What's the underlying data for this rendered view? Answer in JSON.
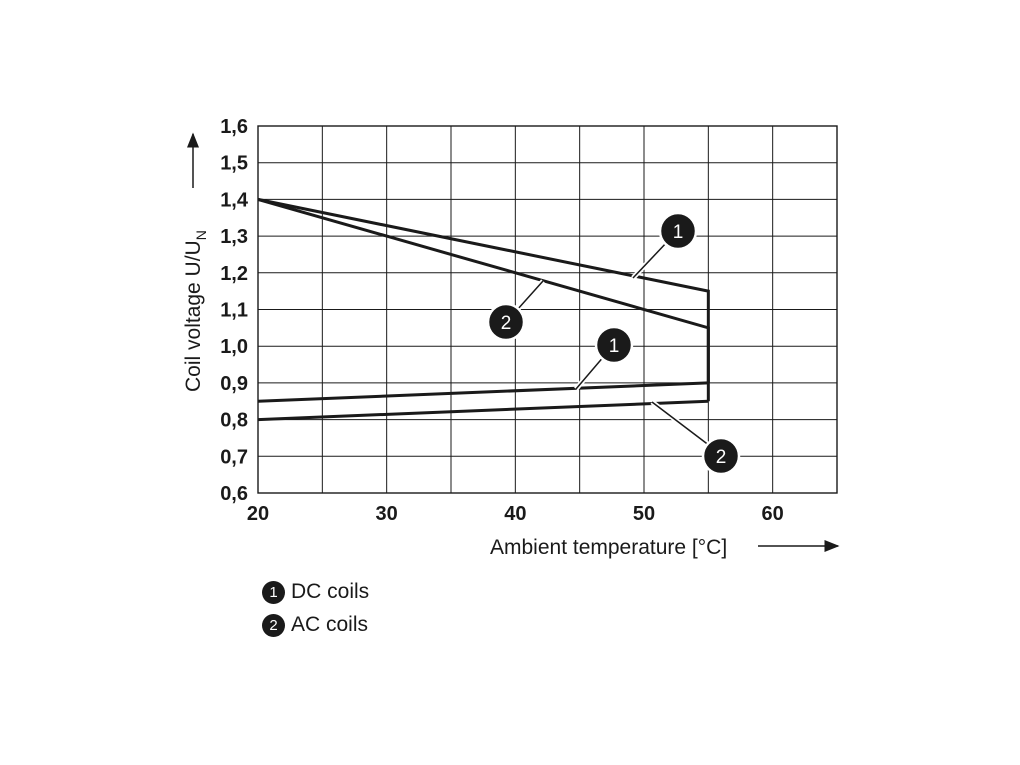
{
  "chart_data": {
    "type": "line",
    "xlabel": "Ambient temperature [°C]",
    "ylabel": "Coil voltage U/U",
    "ylabel_subscript": "N",
    "xlim": [
      20,
      65
    ],
    "ylim": [
      0.6,
      1.6
    ],
    "x_ticks": [
      20,
      30,
      40,
      50,
      60
    ],
    "x_tick_labels": [
      "20",
      "30",
      "40",
      "50",
      "60"
    ],
    "y_ticks": [
      0.6,
      0.7,
      0.8,
      0.9,
      1.0,
      1.1,
      1.2,
      1.3,
      1.4,
      1.5,
      1.6
    ],
    "y_tick_labels": [
      "0,6",
      "0,7",
      "0,8",
      "0,9",
      "1,0",
      "1,1",
      "1,2",
      "1,3",
      "1,4",
      "1,5",
      "1,6"
    ],
    "grid": true,
    "series": [
      {
        "name": "DC coils",
        "part": "upper",
        "x": [
          20,
          55,
          55
        ],
        "y": [
          1.4,
          1.15,
          0.9
        ]
      },
      {
        "name": "AC coils",
        "part": "upper",
        "x": [
          20,
          55,
          55
        ],
        "y": [
          1.4,
          1.05,
          0.85
        ]
      },
      {
        "name": "DC coils",
        "part": "lower",
        "x": [
          20,
          55
        ],
        "y": [
          0.85,
          0.9
        ]
      },
      {
        "name": "AC coils",
        "part": "lower",
        "x": [
          20,
          55
        ],
        "y": [
          0.8,
          0.85
        ]
      }
    ],
    "legend": [
      {
        "number": "1",
        "label": "DC coils"
      },
      {
        "number": "2",
        "label": "AC coils"
      }
    ]
  }
}
